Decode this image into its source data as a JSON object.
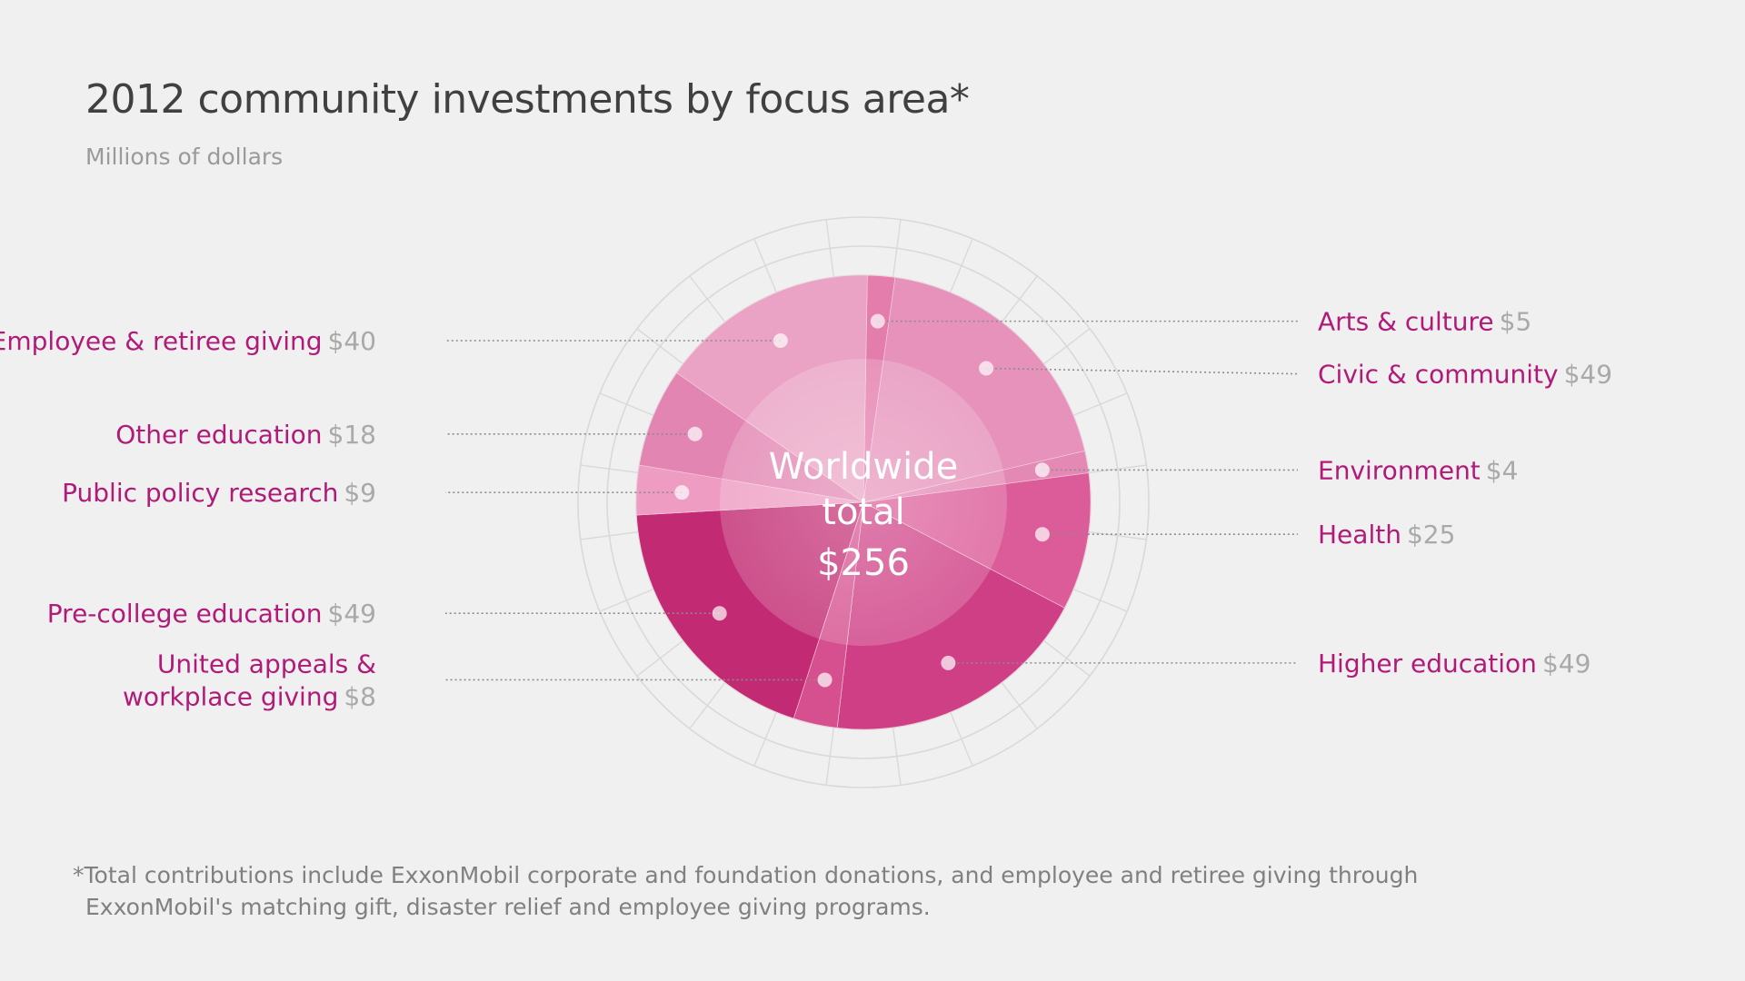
{
  "title": "2012 community investments by focus area*",
  "subtitle": "Millions of dollars",
  "center_label": {
    "line1": "Worldwide",
    "line2": "total",
    "value": "$256"
  },
  "footnote": {
    "line1": "*Total contributions include ExxonMobil corporate and foundation donations, and employee and retiree giving through",
    "line2": "ExxonMobil's matching gift, disaster relief and employee giving programs."
  },
  "colors": {
    "label": "#b01a78",
    "value": "#a9a9a9",
    "grid": "#d9d9d9",
    "leader": "#8c8c8c",
    "center": "#ffffff"
  },
  "chart_data": {
    "type": "pie",
    "title": "2012 community investments by focus area*",
    "subtitle": "Millions of dollars",
    "total": 256,
    "grid": true,
    "slices": [
      {
        "label": "Arts & culture",
        "value_label": "$5",
        "value": 5,
        "side": "right",
        "color": "#e47cac"
      },
      {
        "label": "Civic & community",
        "value_label": "$49",
        "value": 49,
        "side": "right",
        "color": "#e692ba"
      },
      {
        "label": "Environment",
        "value_label": "$4",
        "value": 4,
        "side": "right",
        "color": "#e489b4"
      },
      {
        "label": "Health",
        "value_label": "$25",
        "value": 25,
        "side": "right",
        "color": "#dc5c99"
      },
      {
        "label": "Higher education",
        "value_label": "$49",
        "value": 49,
        "side": "right",
        "color": "#cf3f85"
      },
      {
        "label": "United appeals &\nworkplace giving",
        "value_label": "$8",
        "value": 8,
        "side": "left",
        "color": "#d6508f"
      },
      {
        "label": "Pre-college education",
        "value_label": "$49",
        "value": 49,
        "side": "left",
        "color": "#c22b73"
      },
      {
        "label": "Public policy research",
        "value_label": "$9",
        "value": 9,
        "side": "left",
        "color": "#ee9cc2"
      },
      {
        "label": "Other education",
        "value_label": "$18",
        "value": 18,
        "side": "left",
        "color": "#e285b2"
      },
      {
        "label": "Employee & retiree giving",
        "value_label": "$40",
        "value": 40,
        "side": "left",
        "color": "#eaa3c4"
      }
    ]
  }
}
